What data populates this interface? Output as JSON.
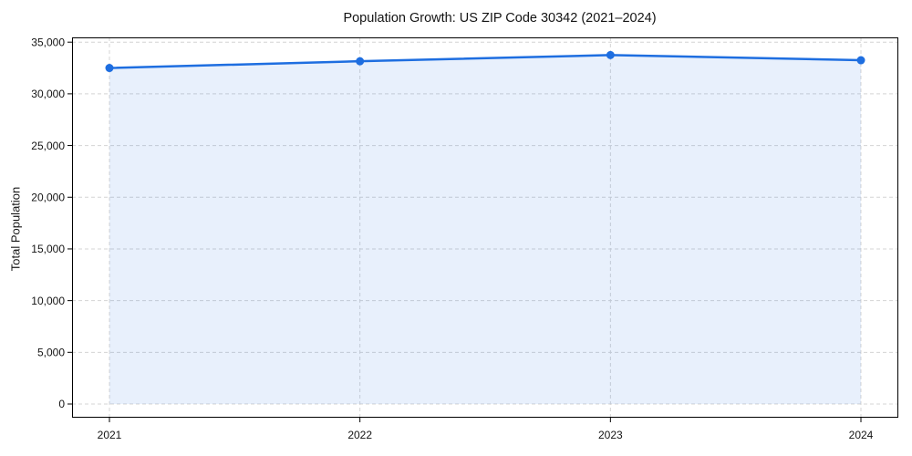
{
  "chart_data": {
    "type": "line",
    "title": "Population Growth: US ZIP Code 30342 (2021–2024)",
    "xlabel": "",
    "ylabel": "Total Population",
    "x": [
      2021,
      2022,
      2023,
      2024
    ],
    "xtick_labels": [
      "2021",
      "2022",
      "2023",
      "2024"
    ],
    "series": [
      {
        "name": "Total Population",
        "values": [
          32500,
          33150,
          33750,
          33250
        ]
      }
    ],
    "ylim": [
      0,
      35000
    ],
    "yticks": [
      0,
      5000,
      10000,
      15000,
      20000,
      25000,
      30000,
      35000
    ],
    "ytick_labels": [
      "0",
      "5,000",
      "10,000",
      "15,000",
      "20,000",
      "25,000",
      "30,000",
      "35,000"
    ],
    "grid": true,
    "grid_style": "dashed",
    "legend": "none",
    "colors": {
      "line": "#1e6ee0",
      "marker": "#1e6ee0",
      "fill": "rgba(30, 110, 224, 0.10)",
      "gridline": "#d4d4d4",
      "spine": "#000000",
      "text": "#141414"
    },
    "marker": "circle"
  }
}
